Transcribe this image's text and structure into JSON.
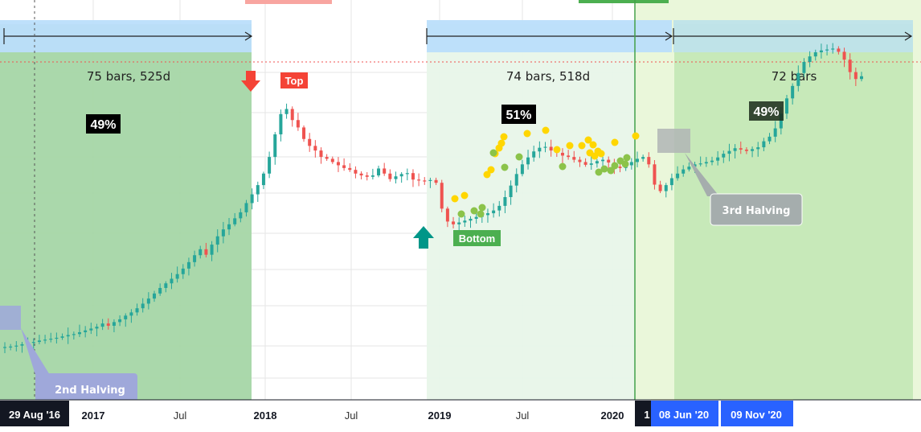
{
  "chart_data": {
    "type": "candlestick",
    "x_axis": {
      "ticks": [
        "2017",
        "Jul",
        "2018",
        "Jul",
        "2019",
        "Jul",
        "2020"
      ],
      "date_tags": [
        "29 Aug '16",
        "08 Jun '20",
        "09 Nov '20"
      ],
      "partial_tag": "1"
    },
    "ranges": [
      {
        "label": "75 bars, 525d",
        "percent": "49%"
      },
      {
        "label": "74 bars, 518d",
        "percent": "51%"
      },
      {
        "label": "72 bars",
        "percent": "49%"
      }
    ],
    "annotations": {
      "top": "Top",
      "bottom": "Bottom",
      "halving_2": "2nd Halving",
      "halving_3": "3rd Halving"
    },
    "price_index": [
      5.0,
      5.1,
      5.3,
      5.6,
      5.9,
      6.1,
      6.4,
      6.6,
      6.8,
      7.0,
      7.3,
      7.6,
      7.8,
      8.2,
      8.6,
      9.0,
      9.4,
      10.1,
      9.6,
      10.4,
      11.0,
      11.8,
      12.5,
      13.4,
      14.4,
      15.5,
      16.6,
      17.8,
      18.8,
      19.8,
      20.8,
      22.0,
      23.4,
      24.9,
      26.2,
      25.0,
      27.2,
      29.0,
      30.5,
      31.6,
      32.9,
      34.2,
      36.2,
      38.1,
      40.1,
      42.6,
      46.2,
      51.1,
      55.5,
      56.6,
      54.2,
      52.6,
      50.1,
      48.6,
      47.6,
      46.2,
      45.8,
      45.1,
      44.4,
      43.8,
      43.4,
      42.6,
      42.2,
      41.9,
      42.2,
      43.7,
      42.6,
      41.4,
      42.0,
      42.5,
      42.7,
      41.3,
      41.1,
      41.0,
      41.2,
      40.6,
      35.0,
      32.2,
      31.6,
      32.0,
      32.4,
      32.8,
      33.2,
      33.6,
      34.0,
      34.6,
      35.6,
      37.5,
      40.0,
      42.5,
      44.6,
      46.1,
      47.4,
      48.2,
      48.4,
      47.6,
      47.1,
      46.5,
      46.2,
      45.6,
      45.1,
      44.5,
      44.8,
      45.3,
      45.6,
      45.0,
      44.1,
      43.8,
      44.4,
      45.1,
      45.8,
      46.2,
      44.6,
      40.2,
      38.8,
      40.1,
      41.6,
      42.6,
      43.5,
      44.1,
      44.6,
      44.8,
      45.1,
      45.4,
      46.1,
      46.9,
      47.5,
      48.1,
      47.8,
      47.5,
      47.9,
      48.3,
      49.6,
      50.6,
      52.4,
      55.6,
      58.9,
      61.6,
      64.4,
      66.8,
      68.0,
      68.9,
      69.3,
      69.5,
      69.7,
      69.0,
      67.3,
      64.6,
      63.1,
      63.7
    ],
    "ylim": [
      0,
      75
    ]
  },
  "colors": {
    "up": "#26a69a",
    "down": "#ef5350",
    "range_green": "#a5d6a7",
    "range_light": "#e8f5e9",
    "range_lime": "#dcedc8",
    "bar_blue": "#bbdefb",
    "top_red": "#f44336",
    "bottom_teal": "#009688",
    "tag_green": "#4caf50",
    "dot_yellow": "#ffd600",
    "dot_green": "#8bc34a",
    "date_blue": "#2962ff",
    "date_black": "#131722"
  }
}
